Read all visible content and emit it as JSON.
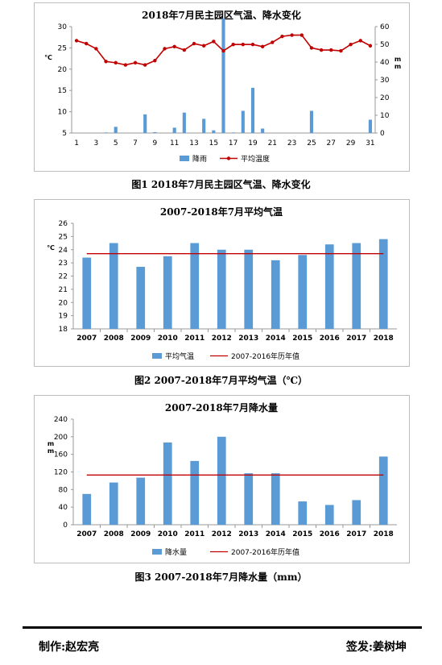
{
  "chart_data": [
    {
      "type": "bar",
      "title": "2018年7月民主园区气温、降水变化",
      "x": [
        1,
        2,
        3,
        4,
        5,
        6,
        7,
        8,
        9,
        10,
        11,
        12,
        13,
        14,
        15,
        16,
        17,
        18,
        19,
        20,
        21,
        22,
        23,
        24,
        25,
        26,
        27,
        28,
        29,
        30,
        31
      ],
      "x_tick_labels": [
        "1",
        "3",
        "5",
        "7",
        "9",
        "11",
        "13",
        "15",
        "17",
        "19",
        "21",
        "23",
        "25",
        "27",
        "29",
        "31"
      ],
      "ylabel": "℃",
      "y2label": "mm",
      "ylim": [
        5,
        30
      ],
      "y2lim": [
        0,
        60
      ],
      "y_ticks": [
        "5",
        "10",
        "15",
        "20",
        "25",
        "30"
      ],
      "y2_ticks": [
        "0",
        "10",
        "20",
        "30",
        "40",
        "50",
        "60"
      ],
      "series": [
        {
          "name": "降雨",
          "kind": "bar",
          "axis": "y2",
          "color": "#5b9bd5",
          "values": [
            0,
            0,
            0,
            0.3,
            3.5,
            0,
            0,
            10.5,
            0.5,
            0,
            3,
            11.5,
            0,
            8,
            1.5,
            64.5,
            0.3,
            12.5,
            25.5,
            2.5,
            0,
            0,
            0,
            0,
            12.5,
            0,
            0,
            0,
            0,
            0,
            7.5
          ]
        },
        {
          "name": "平均温度",
          "kind": "line",
          "axis": "y",
          "color": "#c00000",
          "values": [
            26.7,
            26.0,
            24.8,
            21.8,
            21.5,
            21.0,
            21.5,
            21.0,
            22.0,
            24.8,
            25.3,
            24.5,
            26.0,
            25.5,
            26.5,
            24.3,
            25.8,
            25.8,
            25.8,
            25.3,
            26.3,
            27.7,
            28.0,
            28.0,
            25.0,
            24.5,
            24.5,
            24.3,
            25.8,
            26.7,
            25.5
          ]
        }
      ],
      "grid": false,
      "legend": "bottom"
    },
    {
      "type": "bar",
      "title": "2007-2018年7月平均气温",
      "categories": [
        "2007",
        "2008",
        "2009",
        "2010",
        "2011",
        "2012",
        "2013",
        "2014",
        "2015",
        "2016",
        "2017",
        "2018"
      ],
      "ylabel": "℃",
      "ylim": [
        18,
        26
      ],
      "y_ticks": [
        "18",
        "19",
        "20",
        "21",
        "22",
        "23",
        "24",
        "25",
        "26"
      ],
      "series": [
        {
          "name": "平均气温",
          "kind": "bar",
          "color": "#5b9bd5",
          "values": [
            23.4,
            24.5,
            22.7,
            23.5,
            24.5,
            24.0,
            24.0,
            23.2,
            23.6,
            24.4,
            24.5,
            24.8
          ]
        },
        {
          "name": "2007-2016年历年值",
          "kind": "hline",
          "color": "#c00000",
          "value": 23.7
        }
      ],
      "grid": false,
      "legend": "bottom"
    },
    {
      "type": "bar",
      "title": "2007-2018年7月降水量",
      "categories": [
        "2007",
        "2008",
        "2009",
        "2010",
        "2011",
        "2012",
        "2013",
        "2014",
        "2015",
        "2016",
        "2017",
        "2018"
      ],
      "ylabel": "mm",
      "ylim": [
        0,
        240
      ],
      "y_ticks": [
        "0",
        "40",
        "80",
        "120",
        "160",
        "200",
        "240"
      ],
      "series": [
        {
          "name": "降水量",
          "kind": "bar",
          "color": "#5b9bd5",
          "values": [
            70,
            96,
            107,
            187,
            145,
            200,
            117,
            117,
            53,
            45,
            56,
            155
          ]
        },
        {
          "name": "2007-2016年历年值",
          "kind": "hline",
          "color": "#c00000",
          "value": 113
        }
      ],
      "grid": false,
      "legend": "bottom"
    }
  ],
  "captions": {
    "fig1": "图1 2018年7月民主园区气温、降水变化",
    "fig2": "图2 2007-2018年7月平均气温（℃）",
    "fig3": "图3 2007-2018年7月降水量（mm）"
  },
  "footer": {
    "author": "制作:赵宏亮",
    "approver": "签发:姜树坤"
  }
}
